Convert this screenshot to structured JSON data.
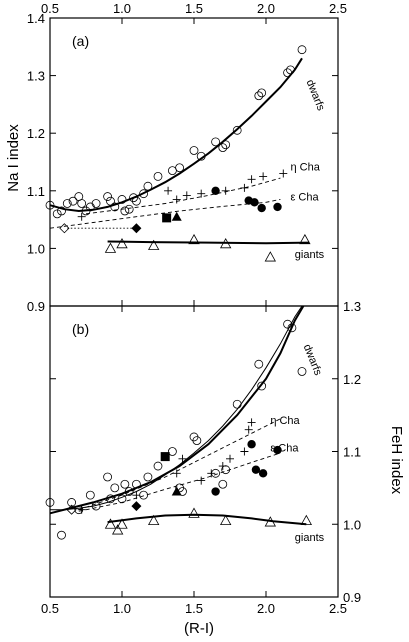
{
  "chart_data": [
    {
      "panel": "(a)",
      "type": "scatter",
      "ylabel": "Na I index",
      "xlabel": "",
      "xlim": [
        0.5,
        2.5
      ],
      "ylim": [
        0.9,
        1.4
      ],
      "x_ticks": [
        "0.5",
        "1.0",
        "1.5",
        "2.0",
        "2.5"
      ],
      "y_ticks": [
        "0.9",
        "1.0",
        "1.1",
        "1.2",
        "1.3",
        "1.4"
      ],
      "curve_labels": {
        "dwarfs": "dwarfs",
        "eta": "η Cha",
        "eps": "ε Cha",
        "giants": "giants"
      },
      "curves": [
        {
          "label": "dwarfs",
          "style": "solid-thick",
          "points": [
            [
              0.5,
              1.075
            ],
            [
              0.6,
              1.068
            ],
            [
              0.7,
              1.065
            ],
            [
              0.8,
              1.067
            ],
            [
              0.9,
              1.072
            ],
            [
              1.0,
              1.08
            ],
            [
              1.1,
              1.09
            ],
            [
              1.2,
              1.102
            ],
            [
              1.3,
              1.115
            ],
            [
              1.4,
              1.13
            ],
            [
              1.5,
              1.147
            ],
            [
              1.6,
              1.165
            ],
            [
              1.7,
              1.185
            ],
            [
              1.8,
              1.207
            ],
            [
              1.9,
              1.23
            ],
            [
              2.0,
              1.255
            ],
            [
              2.1,
              1.28
            ],
            [
              2.2,
              1.31
            ],
            [
              2.25,
              1.33
            ]
          ]
        },
        {
          "label": "giants",
          "style": "solid-thick",
          "points": [
            [
              0.9,
              1.012
            ],
            [
              1.2,
              1.011
            ],
            [
              1.6,
              1.01
            ],
            [
              2.0,
              1.009
            ],
            [
              2.3,
              1.01
            ]
          ]
        },
        {
          "label": "eta",
          "style": "dashed",
          "points": [
            [
              0.75,
              1.06
            ],
            [
              1.0,
              1.068
            ],
            [
              1.3,
              1.078
            ],
            [
              1.6,
              1.092
            ],
            [
              1.9,
              1.108
            ],
            [
              2.1,
              1.122
            ]
          ]
        },
        {
          "label": "eps",
          "style": "dashed",
          "points": [
            [
              0.5,
              1.035
            ],
            [
              0.8,
              1.045
            ],
            [
              1.1,
              1.055
            ],
            [
              1.4,
              1.065
            ],
            [
              1.7,
              1.073
            ],
            [
              2.0,
              1.08
            ],
            [
              2.1,
              1.085
            ]
          ]
        },
        {
          "label": "ref",
          "style": "dotted",
          "points": [
            [
              0.62,
              1.035
            ],
            [
              1.1,
              1.035
            ]
          ]
        }
      ],
      "series": [
        {
          "name": "dwarfs",
          "marker": "open-circle",
          "x": [
            0.5,
            0.55,
            0.58,
            0.62,
            0.66,
            0.7,
            0.72,
            0.75,
            0.78,
            0.82,
            0.9,
            0.92,
            0.95,
            1.0,
            1.02,
            1.05,
            1.08,
            1.1,
            1.15,
            1.18,
            1.25,
            1.35,
            1.4,
            1.5,
            1.55,
            1.65,
            1.7,
            1.72,
            1.8,
            1.95,
            1.97,
            2.15,
            2.17,
            2.25
          ],
          "y": [
            1.075,
            1.06,
            1.065,
            1.078,
            1.082,
            1.09,
            1.078,
            1.065,
            1.072,
            1.078,
            1.09,
            1.082,
            1.072,
            1.085,
            1.065,
            1.068,
            1.088,
            1.082,
            1.095,
            1.108,
            1.125,
            1.135,
            1.14,
            1.17,
            1.16,
            1.185,
            1.175,
            1.18,
            1.205,
            1.265,
            1.27,
            1.305,
            1.31,
            1.345
          ]
        },
        {
          "name": "eta-cha",
          "marker": "plus",
          "x": [
            0.72,
            1.32,
            1.38,
            1.45,
            1.55,
            1.72,
            1.85,
            1.9,
            1.98,
            2.12
          ],
          "y": [
            1.055,
            1.1,
            1.085,
            1.092,
            1.095,
            1.1,
            1.105,
            1.12,
            1.125,
            1.13
          ]
        },
        {
          "name": "eps-cha",
          "marker": "filled-circle",
          "x": [
            1.65,
            1.88,
            1.92,
            1.97,
            2.08
          ],
          "y": [
            1.1,
            1.083,
            1.08,
            1.07,
            1.072
          ]
        },
        {
          "name": "giants",
          "marker": "open-triangle",
          "x": [
            0.92,
            1.0,
            1.22,
            1.5,
            1.72,
            2.03,
            2.27
          ],
          "y": [
            1.0,
            1.008,
            1.005,
            1.015,
            1.008,
            0.985,
            1.015
          ]
        },
        {
          "name": "open-diamond",
          "marker": "open-diamond",
          "x": [
            0.6
          ],
          "y": [
            1.035
          ]
        },
        {
          "name": "filled-square",
          "marker": "filled-square",
          "x": [
            1.31
          ],
          "y": [
            1.053
          ]
        },
        {
          "name": "filled-triangle",
          "marker": "filled-triangle",
          "x": [
            1.38
          ],
          "y": [
            1.055
          ]
        },
        {
          "name": "filled-diamond",
          "marker": "filled-diamond",
          "x": [
            1.1
          ],
          "y": [
            1.035
          ]
        }
      ]
    },
    {
      "panel": "(b)",
      "type": "scatter",
      "ylabel": "FeH index",
      "xlabel": "(R-I)",
      "xlim": [
        0.5,
        2.5
      ],
      "ylim": [
        0.9,
        1.3
      ],
      "x_ticks": [
        "0.5",
        "1.0",
        "1.5",
        "2.0",
        "2.5"
      ],
      "y_ticks": [
        "0.9",
        "1.0",
        "1.1",
        "1.2",
        "1.3"
      ],
      "curve_labels": {
        "dwarfs": "dwarfs",
        "eta": "η Cha",
        "eps": "ε Cha",
        "giants": "giants"
      },
      "curves": [
        {
          "label": "dwarfs",
          "style": "solid-thin",
          "points": [
            [
              0.5,
              1.02
            ],
            [
              0.6,
              1.02
            ],
            [
              0.7,
              1.022
            ],
            [
              0.8,
              1.025
            ],
            [
              0.9,
              1.03
            ],
            [
              1.0,
              1.037
            ],
            [
              1.1,
              1.045
            ],
            [
              1.2,
              1.055
            ],
            [
              1.3,
              1.068
            ],
            [
              1.4,
              1.082
            ],
            [
              1.5,
              1.098
            ],
            [
              1.6,
              1.115
            ],
            [
              1.7,
              1.135
            ],
            [
              1.8,
              1.158
            ],
            [
              1.9,
              1.185
            ],
            [
              2.0,
              1.215
            ],
            [
              2.1,
              1.248
            ],
            [
              2.2,
              1.285
            ],
            [
              2.25,
              1.3
            ]
          ]
        },
        {
          "label": "giants",
          "style": "solid-thick",
          "points": [
            [
              0.9,
              1.003
            ],
            [
              1.1,
              1.008
            ],
            [
              1.3,
              1.012
            ],
            [
              1.5,
              1.013
            ],
            [
              1.7,
              1.012
            ],
            [
              1.9,
              1.008
            ],
            [
              2.05,
              1.004
            ],
            [
              2.28,
              1.0
            ]
          ]
        },
        {
          "label": "fit",
          "style": "solid-thick",
          "points": [
            [
              0.5,
              1.015
            ],
            [
              0.8,
              1.03
            ],
            [
              1.0,
              1.042
            ],
            [
              1.2,
              1.058
            ],
            [
              1.4,
              1.08
            ],
            [
              1.6,
              1.11
            ],
            [
              1.8,
              1.15
            ],
            [
              2.0,
              1.2
            ],
            [
              2.1,
              1.235
            ],
            [
              2.2,
              1.28
            ],
            [
              2.26,
              1.3
            ]
          ]
        },
        {
          "label": "eta",
          "style": "dashed",
          "points": [
            [
              0.7,
              1.02
            ],
            [
              1.0,
              1.04
            ],
            [
              1.3,
              1.065
            ],
            [
              1.6,
              1.095
            ],
            [
              1.9,
              1.125
            ],
            [
              2.1,
              1.145
            ]
          ]
        },
        {
          "label": "eps",
          "style": "dashed",
          "points": [
            [
              0.7,
              1.018
            ],
            [
              1.0,
              1.03
            ],
            [
              1.3,
              1.048
            ],
            [
              1.6,
              1.065
            ],
            [
              1.9,
              1.085
            ],
            [
              2.1,
              1.098
            ]
          ]
        }
      ],
      "series": [
        {
          "name": "dwarfs",
          "marker": "open-circle",
          "x": [
            0.5,
            0.58,
            0.65,
            0.7,
            0.78,
            0.82,
            0.9,
            0.92,
            0.95,
            1.0,
            1.02,
            1.05,
            1.1,
            1.15,
            1.18,
            1.25,
            1.35,
            1.4,
            1.42,
            1.5,
            1.52,
            1.65,
            1.7,
            1.72,
            1.8,
            1.95,
            1.97,
            2.15,
            2.18,
            2.25
          ],
          "y": [
            1.03,
            0.985,
            1.03,
            1.02,
            1.04,
            1.025,
            1.065,
            1.035,
            1.05,
            1.035,
            1.055,
            1.045,
            1.055,
            1.04,
            1.065,
            1.08,
            1.1,
            1.05,
            1.045,
            1.12,
            1.115,
            1.07,
            1.055,
            1.075,
            1.165,
            1.22,
            1.19,
            1.275,
            1.27,
            1.21
          ]
        },
        {
          "name": "eta-cha",
          "marker": "plus",
          "x": [
            0.72,
            1.1,
            1.38,
            1.42,
            1.55,
            1.62,
            1.7,
            1.75,
            1.85,
            1.88,
            1.9
          ],
          "y": [
            1.02,
            1.04,
            1.07,
            1.09,
            1.06,
            1.07,
            1.08,
            1.09,
            1.1,
            1.13,
            1.14
          ]
        },
        {
          "name": "eps-cha",
          "marker": "filled-circle",
          "x": [
            1.65,
            1.9,
            1.93,
            1.98,
            2.08
          ],
          "y": [
            1.045,
            1.11,
            1.075,
            1.07,
            1.102
          ]
        },
        {
          "name": "giants",
          "marker": "open-triangle",
          "x": [
            0.92,
            0.97,
            1.0,
            1.22,
            1.5,
            1.72,
            2.03,
            2.28
          ],
          "y": [
            1.0,
            0.992,
            1.0,
            1.005,
            1.015,
            1.005,
            1.003,
            1.005
          ]
        },
        {
          "name": "open-diamond",
          "marker": "open-diamond",
          "x": [
            0.65
          ],
          "y": [
            1.02
          ]
        },
        {
          "name": "filled-square",
          "marker": "filled-square",
          "x": [
            1.3
          ],
          "y": [
            1.093
          ]
        },
        {
          "name": "filled-triangle",
          "marker": "filled-triangle",
          "x": [
            1.38
          ],
          "y": [
            1.045
          ]
        },
        {
          "name": "filled-diamond",
          "marker": "filled-diamond",
          "x": [
            1.1
          ],
          "y": [
            1.025
          ]
        }
      ]
    }
  ],
  "shared": {
    "top_x_ticks": [
      "0.5",
      "1.0",
      "1.5",
      "2.0",
      "2.5"
    ],
    "right_axis": {
      "label": "FeH index",
      "ticks": [
        "0.9",
        "1.0",
        "1.1",
        "1.2",
        "1.3"
      ]
    }
  }
}
